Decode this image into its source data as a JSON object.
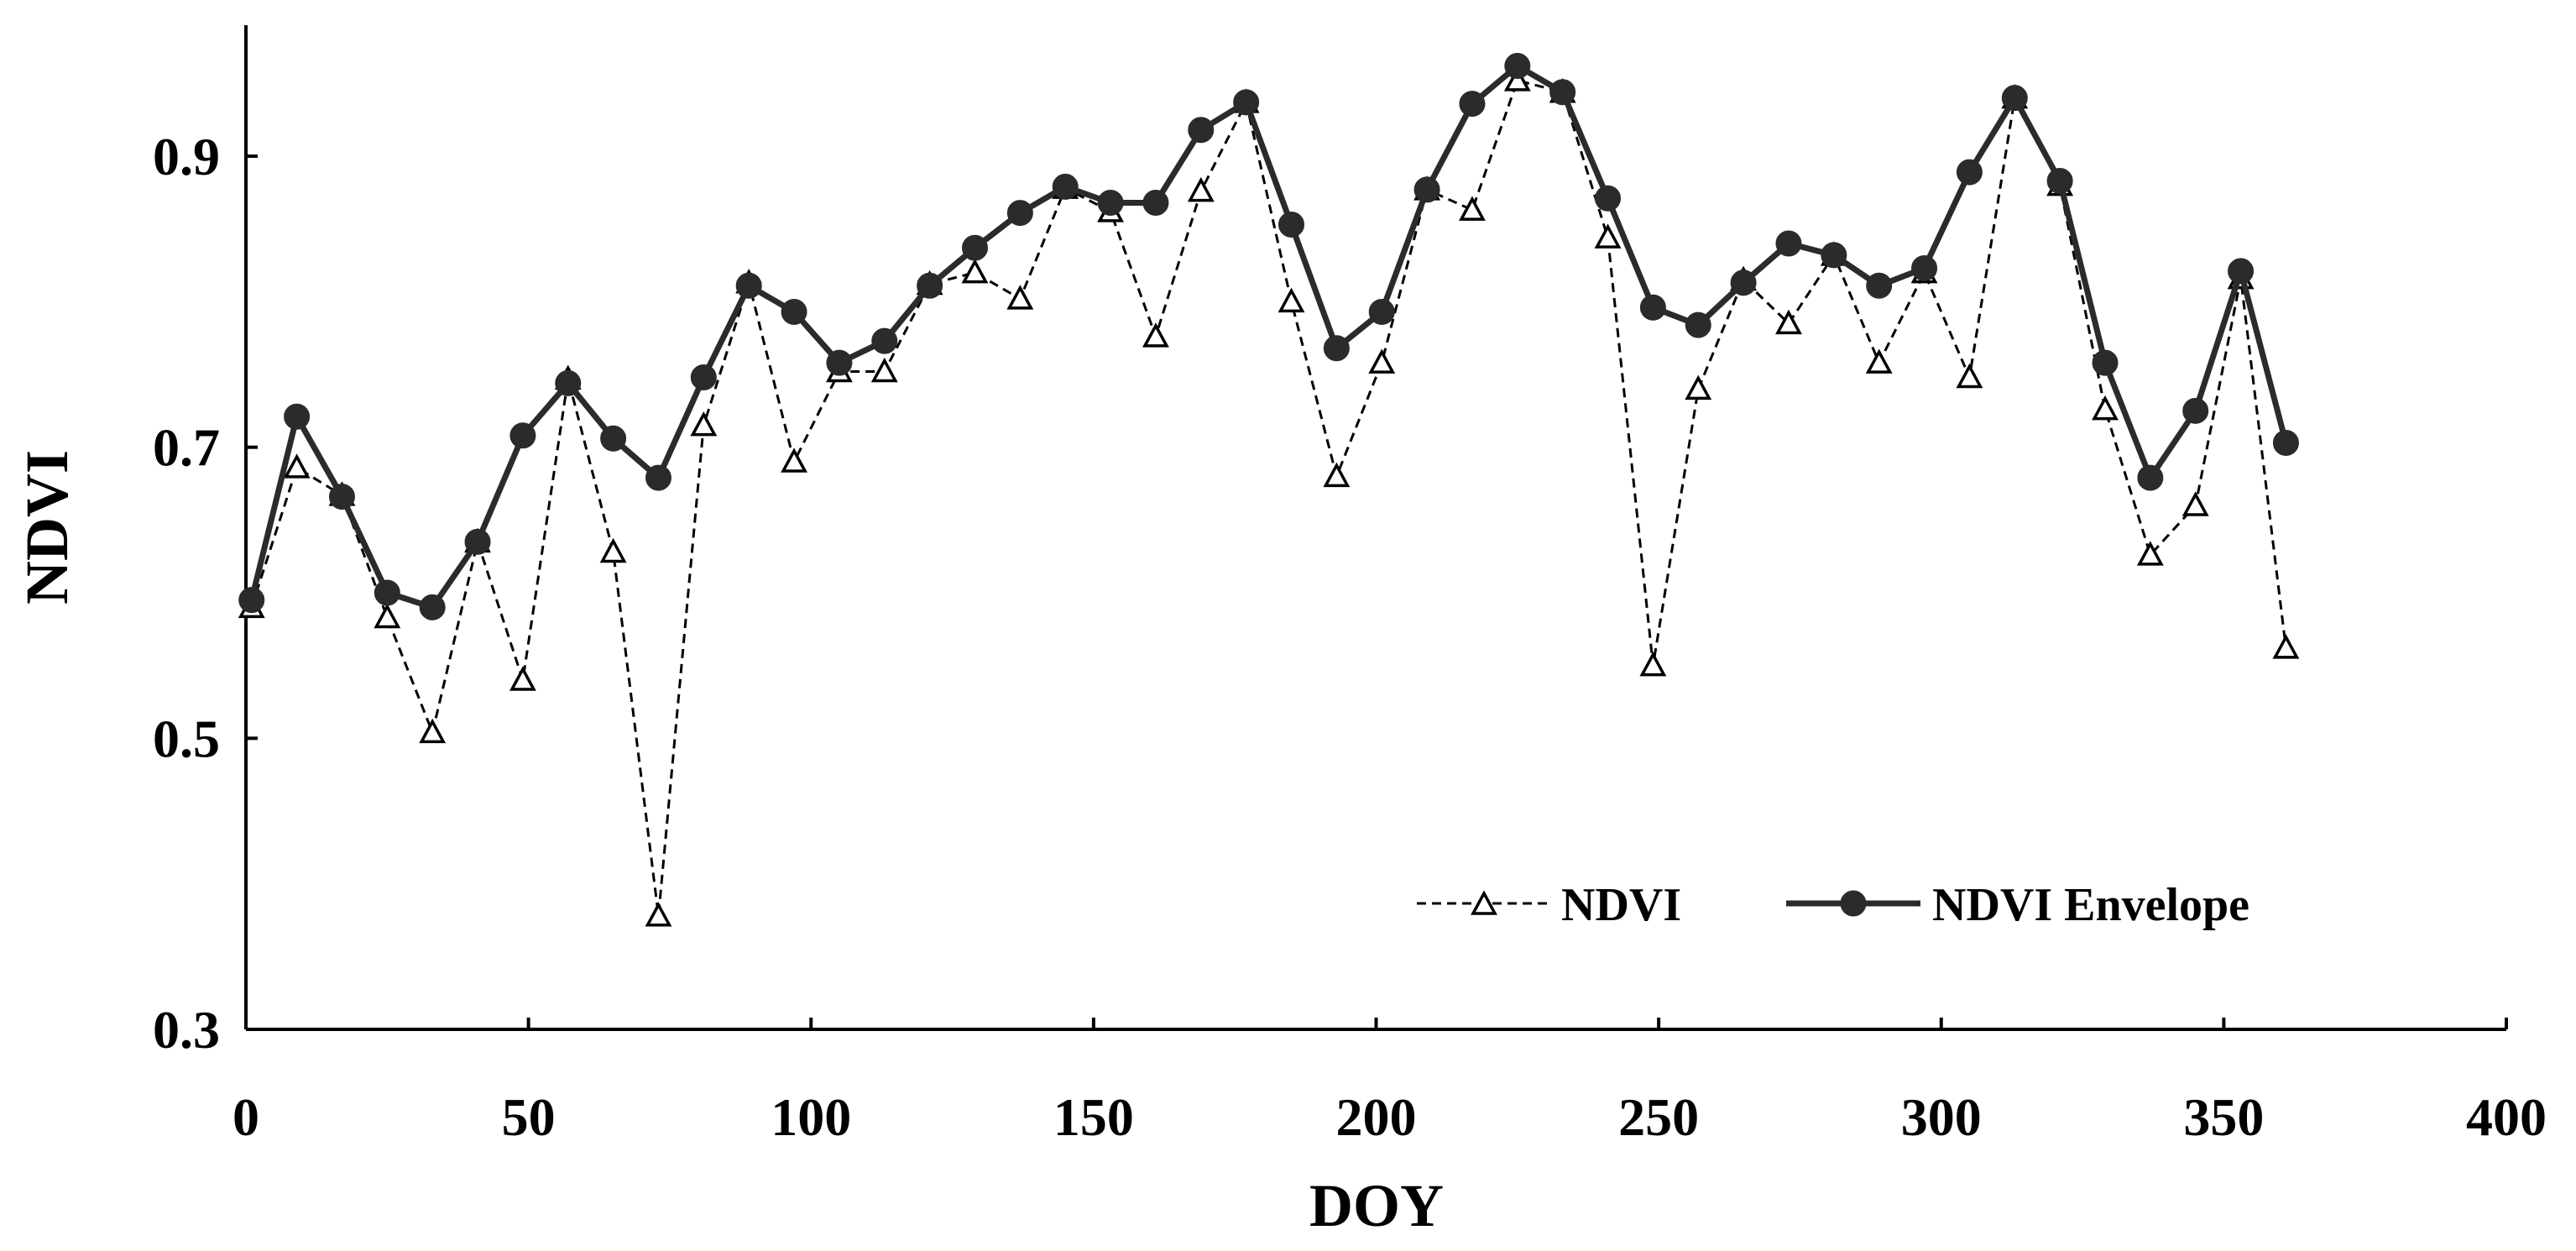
{
  "chart_data": {
    "type": "line",
    "xlabel": "DOY",
    "ylabel": "NDVI",
    "xlim": [
      0,
      400
    ],
    "ylim": [
      0.3,
      0.99
    ],
    "xticks": [
      0,
      50,
      100,
      150,
      200,
      250,
      300,
      350,
      400
    ],
    "xtick_labels": [
      "0",
      "50",
      "100",
      "150",
      "200",
      "250",
      "300",
      "350",
      "400"
    ],
    "yticks": [
      0.3,
      0.5,
      0.7,
      0.9
    ],
    "ytick_labels": [
      "0.3",
      "0.5",
      "0.7",
      "0.9"
    ],
    "grid": false,
    "legend_position": "bottom-right",
    "x": [
      1,
      9,
      17,
      25,
      33,
      41,
      49,
      57,
      65,
      73,
      81,
      89,
      97,
      105,
      113,
      121,
      129,
      137,
      145,
      153,
      161,
      169,
      177,
      185,
      193,
      201,
      209,
      217,
      225,
      233,
      241,
      249,
      257,
      265,
      273,
      281,
      289,
      297,
      305,
      313,
      321,
      329,
      337,
      345,
      353,
      361
    ],
    "series": [
      {
        "name": "NDVI",
        "style": "dashed",
        "marker": "open-triangle",
        "color": "#000000",
        "values": [
          0.59,
          0.686,
          0.667,
          0.583,
          0.504,
          0.635,
          0.54,
          0.747,
          0.628,
          0.378,
          0.715,
          0.813,
          0.69,
          0.752,
          0.752,
          0.812,
          0.82,
          0.802,
          0.878,
          0.862,
          0.776,
          0.876,
          0.937,
          0.8,
          0.68,
          0.758,
          0.877,
          0.863,
          0.952,
          0.944,
          0.844,
          0.55,
          0.74,
          0.815,
          0.785,
          0.832,
          0.758,
          0.82,
          0.748,
          0.94,
          0.88,
          0.726,
          0.626,
          0.66,
          0.816,
          0.562
        ]
      },
      {
        "name": "NDVI Envelope",
        "style": "solid",
        "marker": "filled-circle",
        "color": "#2b2b2b",
        "values": [
          0.595,
          0.721,
          0.666,
          0.6,
          0.59,
          0.635,
          0.708,
          0.744,
          0.706,
          0.679,
          0.748,
          0.811,
          0.793,
          0.758,
          0.773,
          0.811,
          0.837,
          0.861,
          0.879,
          0.868,
          0.868,
          0.918,
          0.937,
          0.853,
          0.768,
          0.793,
          0.877,
          0.936,
          0.962,
          0.944,
          0.871,
          0.796,
          0.784,
          0.813,
          0.84,
          0.832,
          0.811,
          0.823,
          0.889,
          0.94,
          0.883,
          0.758,
          0.679,
          0.725,
          0.821,
          0.703
        ]
      }
    ]
  }
}
